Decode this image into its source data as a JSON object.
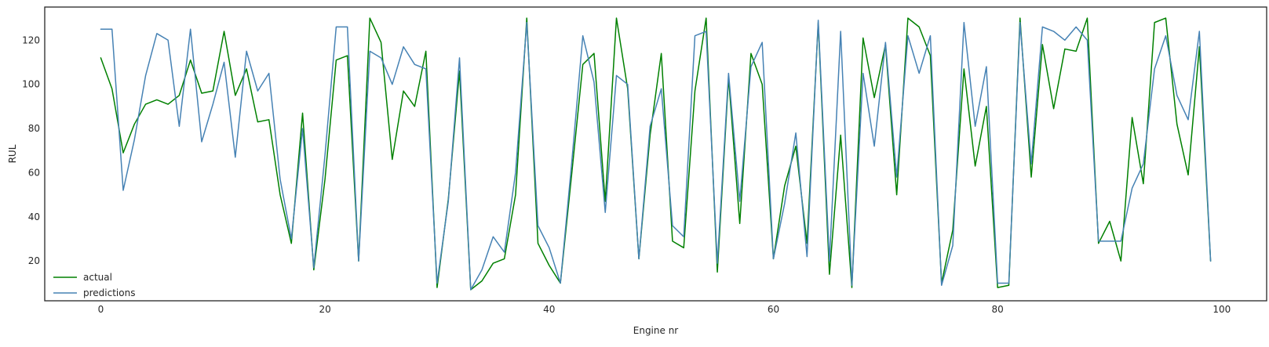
{
  "chart_data": {
    "type": "line",
    "title": "",
    "xlabel": "Engine nr",
    "ylabel": "RUL",
    "xlim": [
      -5,
      104
    ],
    "ylim": [
      2,
      135
    ],
    "xticks": [
      0,
      20,
      40,
      60,
      80,
      100
    ],
    "yticks": [
      20,
      40,
      60,
      80,
      100,
      120
    ],
    "grid": false,
    "legend_position": "lower-left",
    "series": [
      {
        "name": "actual",
        "color": "#008000",
        "values": [
          112,
          98,
          69,
          82,
          91,
          93,
          91,
          95,
          111,
          96,
          97,
          124,
          95,
          107,
          83,
          84,
          50,
          28,
          87,
          16,
          57,
          111,
          113,
          20,
          130,
          119,
          66,
          97,
          90,
          115,
          8,
          48,
          106,
          7,
          11,
          19,
          21,
          50,
          130,
          28,
          18,
          10,
          59,
          109,
          114,
          47,
          130,
          98,
          21,
          77,
          114,
          29,
          26,
          97,
          130,
          15,
          103,
          37,
          114,
          100,
          21,
          54,
          72,
          28,
          128,
          14,
          77,
          8,
          121,
          94,
          118,
          50,
          130,
          126,
          113,
          10,
          34,
          107,
          63,
          90,
          8,
          9,
          130,
          58,
          118,
          89,
          116,
          115,
          130,
          28,
          38,
          20,
          85,
          55,
          128,
          130,
          82,
          59,
          117,
          20
        ]
      },
      {
        "name": "predictions",
        "color": "#4682b4",
        "values": [
          125,
          125,
          52,
          75,
          104,
          123,
          120,
          81,
          125,
          74,
          91,
          110,
          67,
          115,
          97,
          105,
          57,
          30,
          80,
          17,
          68,
          126,
          126,
          20,
          115,
          112,
          100,
          117,
          109,
          107,
          10,
          47,
          112,
          7,
          16,
          31,
          24,
          60,
          128,
          36,
          26,
          10,
          64,
          122,
          101,
          42,
          104,
          100,
          21,
          81,
          98,
          36,
          31,
          122,
          124,
          19,
          105,
          47,
          108,
          119,
          21,
          46,
          78,
          22,
          129,
          20,
          124,
          9,
          105,
          72,
          119,
          58,
          122,
          105,
          122,
          9,
          27,
          128,
          81,
          108,
          10,
          10,
          128,
          64,
          126,
          124,
          120,
          126,
          120,
          29,
          29,
          29,
          53,
          64,
          107,
          122,
          95,
          84,
          124,
          20
        ]
      }
    ]
  }
}
